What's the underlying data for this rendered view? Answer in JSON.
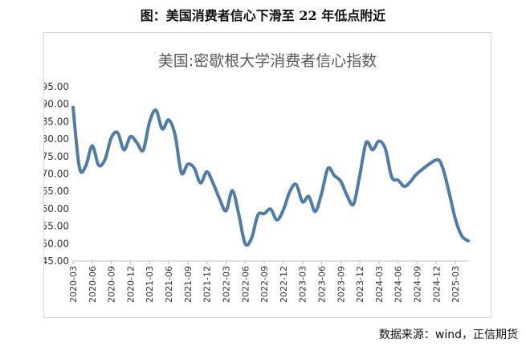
{
  "figure_title": "图：美国消费者信心下滑至 22 年低点附近",
  "source": "数据来源：wind，正信期货",
  "chart_data": {
    "type": "line",
    "title": "美国:密歇根大学消费者信心指数",
    "ylim": [
      45,
      95
    ],
    "yticks": [
      "45.00",
      "50.00",
      "55.00",
      "60.00",
      "65.00",
      "70.00",
      "75.00",
      "80.00",
      "85.00",
      "90.00",
      "95.00"
    ],
    "xticks": [
      "2020-03",
      "2020-06",
      "2020-09",
      "2020-12",
      "2021-03",
      "2021-06",
      "2021-09",
      "2021-12",
      "2022-03",
      "2022-06",
      "2022-09",
      "2022-12",
      "2023-03",
      "2023-06",
      "2023-09",
      "2023-12",
      "2024-03",
      "2024-06",
      "2024-09",
      "2024-12",
      "2025-03"
    ],
    "line_color": "#4f7ca8",
    "grid": false,
    "x": [
      "2020-03",
      "2020-04",
      "2020-05",
      "2020-06",
      "2020-07",
      "2020-08",
      "2020-09",
      "2020-10",
      "2020-11",
      "2020-12",
      "2021-01",
      "2021-02",
      "2021-03",
      "2021-04",
      "2021-05",
      "2021-06",
      "2021-07",
      "2021-08",
      "2021-09",
      "2021-10",
      "2021-11",
      "2021-12",
      "2022-01",
      "2022-02",
      "2022-03",
      "2022-04",
      "2022-05",
      "2022-06",
      "2022-07",
      "2022-08",
      "2022-09",
      "2022-10",
      "2022-11",
      "2022-12",
      "2023-01",
      "2023-02",
      "2023-03",
      "2023-04",
      "2023-05",
      "2023-06",
      "2023-07",
      "2023-08",
      "2023-09",
      "2023-10",
      "2023-11",
      "2023-12",
      "2024-01",
      "2024-02",
      "2024-03",
      "2024-04",
      "2024-05",
      "2024-06",
      "2024-07",
      "2024-08",
      "2024-09",
      "2024-12",
      "2025-01",
      "2025-02",
      "2025-03",
      "2025-04",
      "2025-05"
    ],
    "values": [
      89.1,
      71.8,
      72.3,
      78.1,
      72.5,
      74.1,
      80.4,
      81.8,
      76.9,
      80.7,
      79.0,
      76.8,
      84.9,
      88.3,
      82.9,
      85.5,
      81.2,
      70.3,
      72.8,
      71.7,
      67.4,
      70.6,
      67.2,
      62.8,
      59.4,
      65.2,
      58.4,
      50.0,
      51.5,
      58.2,
      58.6,
      59.9,
      56.8,
      59.7,
      64.9,
      67.0,
      62.0,
      63.5,
      59.2,
      64.4,
      71.6,
      69.5,
      67.9,
      63.8,
      61.3,
      69.7,
      79.0,
      76.9,
      79.4,
      77.2,
      69.1,
      68.2,
      66.4,
      67.9,
      70.1,
      74.0,
      71.7,
      64.7,
      57.0,
      52.2,
      50.8
    ]
  }
}
